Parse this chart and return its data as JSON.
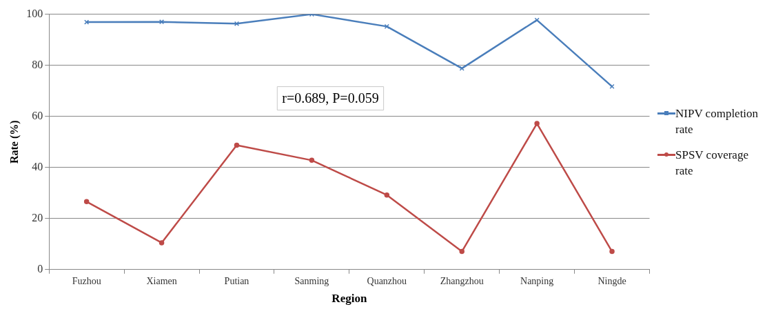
{
  "chart_data": {
    "type": "line",
    "xlabel": "Region",
    "ylabel": "Rate (%)",
    "categories": [
      "Fuzhou",
      "Xiamen",
      "Putian",
      "Sanming",
      "Quanzhou",
      "Zhangzhou",
      "Nanping",
      "Ningde"
    ],
    "series": [
      {
        "name": "NIPV completion rate",
        "color": "#4a7ebb",
        "marker": "cross",
        "values": [
          96.9,
          97,
          96.3,
          100,
          95.2,
          78.8,
          97.7,
          71.7
        ]
      },
      {
        "name": "SPSV coverage rate",
        "color": "#be4b48",
        "marker": "circle",
        "values": [
          26.6,
          10.5,
          48.7,
          42.8,
          29.2,
          7.1,
          57.2,
          7.1
        ]
      }
    ],
    "ylim": [
      0,
      100
    ],
    "yticks": [
      0,
      20,
      40,
      60,
      80,
      100
    ],
    "grid": "y",
    "legend": "right",
    "annotations": [
      "r=0.689, P=0.059"
    ]
  }
}
